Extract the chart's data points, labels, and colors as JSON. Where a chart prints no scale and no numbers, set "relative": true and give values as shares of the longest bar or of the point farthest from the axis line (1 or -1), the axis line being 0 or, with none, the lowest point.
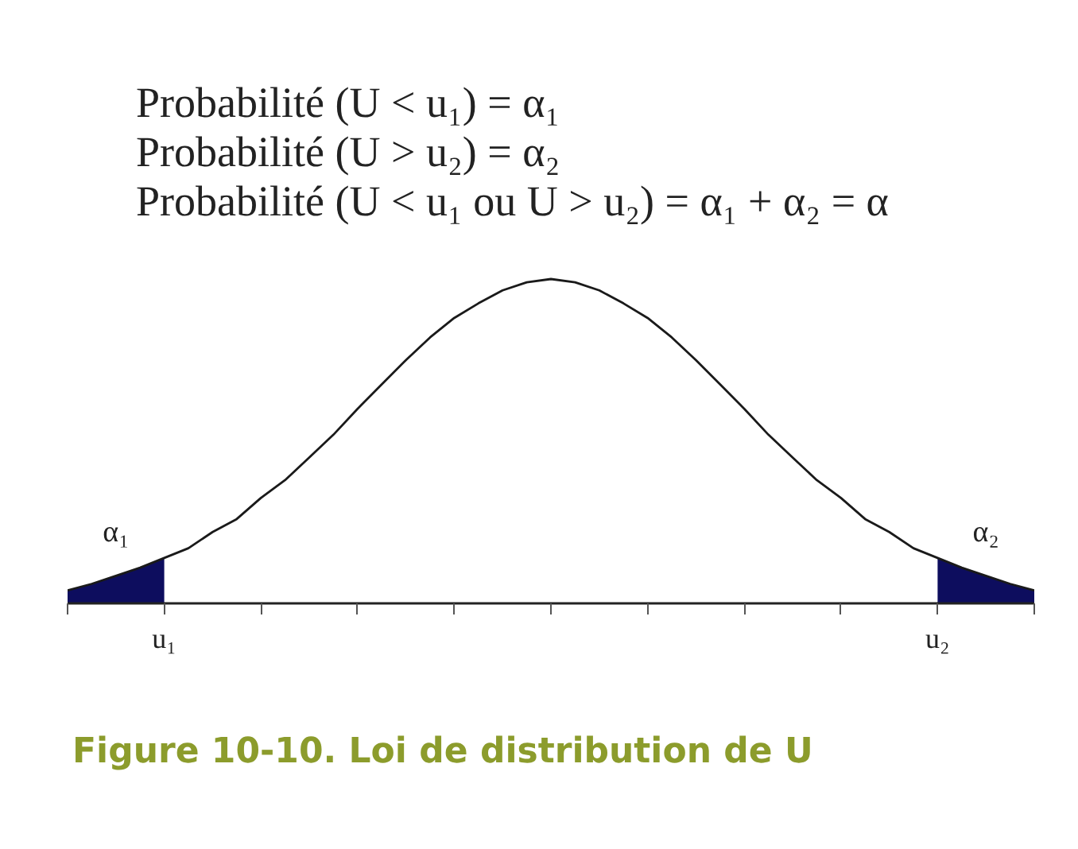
{
  "chart_data": {
    "type": "line",
    "relative": true,
    "title": "Figure 10-10. Loi de distribution de U",
    "annotations": [
      "Probabilité (U < u₁) = α₁",
      "Probabilité (U > u₂) = α₂",
      "Probabilité (U < u₁ ou U > u₂) = α₁ + α₂ = α"
    ],
    "categories": [
      null,
      null,
      null,
      null,
      "u₁",
      null,
      null,
      null,
      null,
      null,
      null,
      null,
      null,
      null,
      null,
      null,
      null,
      null,
      null,
      null,
      null,
      null,
      null,
      null,
      null,
      null,
      null,
      null,
      null,
      null,
      null,
      null,
      null,
      null,
      null,
      null,
      "u₂",
      null,
      null,
      null,
      null
    ],
    "series": [
      {
        "type": "area",
        "name": "α₁",
        "color": "#0d0d5e",
        "values": [
          0.04,
          0.06,
          0.085,
          0.11,
          0.14,
          null,
          null,
          null,
          null,
          null,
          null,
          null,
          null,
          null,
          null,
          null,
          null,
          null,
          null,
          null,
          null,
          null,
          null,
          null,
          null,
          null,
          null,
          null,
          null,
          null,
          null,
          null,
          null,
          null,
          null,
          null,
          null,
          null,
          null,
          null,
          null
        ]
      },
      {
        "type": "area",
        "name": "α₂",
        "color": "#0d0d5e",
        "values": [
          null,
          null,
          null,
          null,
          null,
          null,
          null,
          null,
          null,
          null,
          null,
          null,
          null,
          null,
          null,
          null,
          null,
          null,
          null,
          null,
          null,
          null,
          null,
          null,
          null,
          null,
          null,
          null,
          null,
          null,
          null,
          null,
          null,
          null,
          null,
          null,
          0.14,
          0.11,
          0.085,
          0.06,
          0.04
        ]
      },
      {
        "color": "#1a1a1a",
        "values": [
          0.04,
          0.06,
          0.085,
          0.11,
          0.14,
          0.17,
          0.22,
          0.26,
          0.325,
          0.38,
          0.45,
          0.52,
          0.6,
          0.675,
          0.75,
          0.82,
          0.88,
          0.925,
          0.965,
          0.99,
          1,
          0.99,
          0.965,
          0.925,
          0.88,
          0.82,
          0.75,
          0.675,
          0.6,
          0.52,
          0.45,
          0.38,
          0.325,
          0.26,
          0.22,
          0.17,
          0.14,
          0.11,
          0.085,
          0.06,
          0.04
        ]
      }
    ],
    "grid": false,
    "line_style": "solid"
  }
}
